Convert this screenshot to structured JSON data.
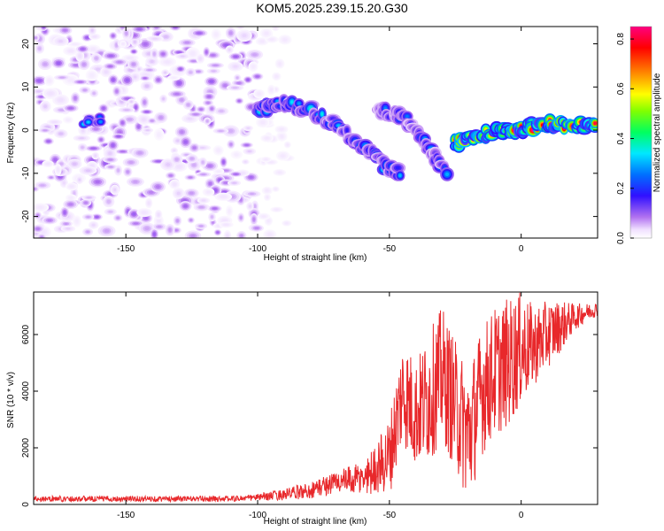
{
  "title": "KOM5.2025.239.15.20.G30",
  "colors": {
    "snr_line": "#e8282b",
    "spectrogram_background": "#ffffff",
    "axis": "#000000"
  },
  "chart_data": [
    {
      "type": "heatmap",
      "name": "spectrogram",
      "title": "KOM5.2025.239.15.20.G30",
      "xlabel": "Height of straight line (km)",
      "ylabel": "Frequency (Hz)",
      "xlim": [
        -185,
        29
      ],
      "ylim": [
        -25,
        24
      ],
      "xticks": [
        -150,
        -100,
        -50,
        0
      ],
      "yticks": [
        -20,
        -10,
        0,
        10,
        20
      ],
      "colorbar": {
        "label": "Normalized spectral amplitude",
        "range": [
          0.0,
          0.85
        ],
        "ticks": [
          0.0,
          0.2,
          0.4,
          0.6,
          0.8
        ],
        "colormap": "rainbow (violet-blue-cyan-green-yellow-red-magenta)"
      },
      "features": [
        {
          "label": "noise field",
          "x_range": [
            -185,
            -100
          ],
          "freq_range": [
            -25,
            24
          ],
          "amplitude": 0.05
        },
        {
          "label": "isolated blob",
          "x": -162,
          "freq": 2,
          "amplitude": 0.3
        },
        {
          "label": "descending trace A",
          "points": [
            [
              -100,
              5
            ],
            [
              -90,
              6
            ],
            [
              -80,
              5
            ],
            [
              -70,
              1
            ],
            [
              -60,
              -4
            ],
            [
              -50,
              -9
            ],
            [
              -45,
              -10
            ]
          ],
          "amplitude": 0.25
        },
        {
          "label": "descending trace B",
          "points": [
            [
              -55,
              5
            ],
            [
              -45,
              3
            ],
            [
              -38,
              -2
            ],
            [
              -32,
              -7
            ],
            [
              -28,
              -10
            ]
          ],
          "amplitude": 0.2
        },
        {
          "label": "rising trace",
          "points": [
            [
              -25,
              -3
            ],
            [
              -15,
              -1
            ],
            [
              -5,
              0
            ],
            [
              5,
              1
            ],
            [
              15,
              1.5
            ],
            [
              29,
              1
            ]
          ],
          "amplitude": 0.6
        }
      ]
    },
    {
      "type": "line",
      "name": "snr",
      "xlabel": "Height of straight line (km)",
      "ylabel": "SNR (10 * v/v)",
      "xlim": [
        -185,
        29
      ],
      "ylim": [
        0,
        7500
      ],
      "xticks": [
        -150,
        -100,
        -50,
        0
      ],
      "yticks": [
        0,
        2000,
        4000,
        6000
      ],
      "series": [
        {
          "name": "SNR",
          "envelope": {
            "x": [
              -185,
              -110,
              -100,
              -90,
              -80,
              -70,
              -60,
              -55,
              -50,
              -45,
              -40,
              -35,
              -30,
              -25,
              -20,
              -15,
              -10,
              -5,
              0,
              5,
              10,
              15,
              20,
              25,
              29
            ],
            "y": [
              200,
              200,
              250,
              350,
              500,
              800,
              900,
              1300,
              1700,
              4000,
              3200,
              3800,
              4600,
              3500,
              2400,
              4000,
              4700,
              5000,
              5500,
              5600,
              6000,
              6300,
              6600,
              6800,
              6900
            ],
            "amplitude": [
              100,
              100,
              120,
              200,
              300,
              400,
              600,
              900,
              1400,
              1900,
              1900,
              2300,
              2400,
              2300,
              2400,
              2300,
              2300,
              2300,
              2000,
              1400,
              1200,
              900,
              500,
              300,
              250
            ]
          }
        }
      ]
    }
  ]
}
